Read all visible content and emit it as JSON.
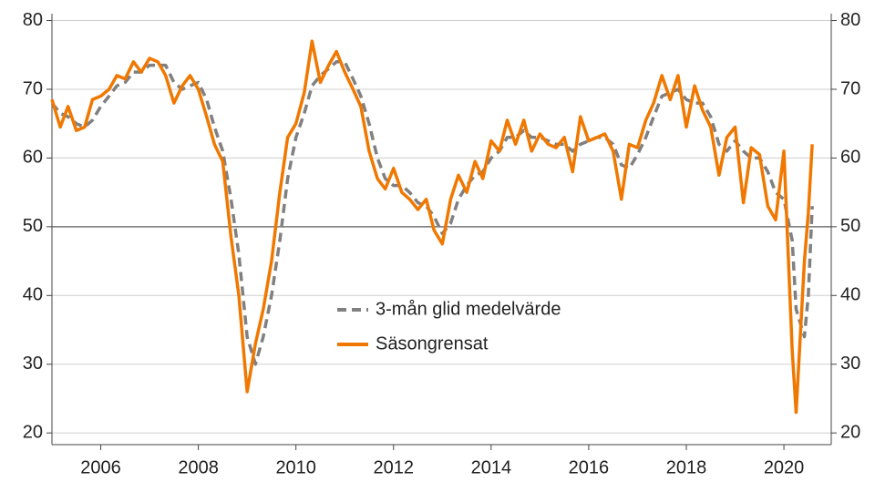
{
  "chart_data": {
    "type": "line",
    "x": [
      2005,
      2005.17,
      2005.33,
      2005.5,
      2005.67,
      2005.83,
      2006,
      2006.17,
      2006.33,
      2006.5,
      2006.67,
      2006.83,
      2007,
      2007.17,
      2007.33,
      2007.5,
      2007.67,
      2007.83,
      2008,
      2008.17,
      2008.33,
      2008.5,
      2008.67,
      2008.83,
      2009,
      2009.17,
      2009.33,
      2009.5,
      2009.67,
      2009.83,
      2010,
      2010.17,
      2010.33,
      2010.5,
      2010.67,
      2010.83,
      2011,
      2011.17,
      2011.33,
      2011.5,
      2011.67,
      2011.83,
      2012,
      2012.17,
      2012.33,
      2012.5,
      2012.67,
      2012.83,
      2013,
      2013.17,
      2013.33,
      2013.5,
      2013.67,
      2013.83,
      2014,
      2014.17,
      2014.33,
      2014.5,
      2014.67,
      2014.83,
      2015,
      2015.17,
      2015.33,
      2015.5,
      2015.67,
      2015.83,
      2016,
      2016.17,
      2016.33,
      2016.5,
      2016.67,
      2016.83,
      2017,
      2017.17,
      2017.33,
      2017.5,
      2017.67,
      2017.83,
      2018,
      2018.17,
      2018.33,
      2018.5,
      2018.67,
      2018.83,
      2019,
      2019.17,
      2019.33,
      2019.5,
      2019.67,
      2019.83,
      2020,
      2020.17,
      2020.25,
      2020.42,
      2020.5,
      2020.58
    ],
    "series": [
      {
        "name": "3-mån glid medelvärde",
        "color": "#808080",
        "dashed": true,
        "values": [
          68,
          66.5,
          66,
          65,
          64.5,
          65.5,
          67.5,
          69,
          70.5,
          71,
          72.5,
          72.5,
          73.5,
          73.5,
          73.5,
          71,
          70,
          70.5,
          71,
          68.5,
          64.5,
          61,
          54,
          46,
          34,
          30,
          34,
          40,
          48,
          57,
          63,
          66.5,
          70.5,
          72,
          73,
          74,
          74,
          71.5,
          69,
          65,
          60,
          57,
          56,
          56,
          55,
          53.5,
          53,
          51.5,
          49,
          50.5,
          54,
          56,
          57.5,
          58,
          60,
          61,
          63,
          63,
          64,
          63,
          63,
          62.5,
          62,
          62,
          61,
          62,
          62.5,
          63,
          63,
          62,
          59,
          58.5,
          60.5,
          63,
          66,
          69,
          69.5,
          70,
          68.5,
          68,
          68,
          66,
          62,
          61,
          62.5,
          61,
          60,
          60,
          58,
          55,
          54,
          48,
          38,
          34,
          40,
          53
        ]
      },
      {
        "name": "Säsongrensat",
        "color": "#f07800",
        "dashed": false,
        "values": [
          68.5,
          64.5,
          67.5,
          64,
          64.5,
          68.5,
          69,
          70,
          72,
          71.5,
          74,
          72.5,
          74.5,
          74,
          72,
          68,
          70.5,
          72,
          70,
          66,
          62,
          59.5,
          48.5,
          40,
          26,
          33,
          38,
          45,
          55,
          63,
          65,
          69.5,
          77,
          71,
          73.5,
          75.5,
          72.5,
          70,
          67.5,
          61,
          57,
          55.5,
          58.5,
          55,
          54,
          52.5,
          54,
          49.5,
          47.5,
          54,
          57.5,
          55,
          59.5,
          57,
          62.5,
          61,
          65.5,
          62,
          65.5,
          61,
          63.5,
          62,
          61.5,
          63,
          58,
          66,
          62.5,
          63,
          63.5,
          61,
          54,
          62,
          61.5,
          65.5,
          68,
          72,
          68.5,
          72,
          64.5,
          70.5,
          67,
          64.5,
          57.5,
          63,
          64.5,
          53.5,
          61.5,
          60.5,
          53,
          51,
          61,
          32,
          23,
          45,
          52,
          62
        ]
      }
    ],
    "xlim": [
      2005,
      2020.97
    ],
    "xticks": [
      2006,
      2008,
      2010,
      2012,
      2014,
      2016,
      2018,
      2020
    ],
    "ylim": [
      18.3,
      81
    ],
    "yticks": [
      20,
      30,
      40,
      50,
      60,
      70,
      80
    ],
    "y2lim": [
      18.3,
      81
    ],
    "y2ticks": [
      20,
      30,
      40,
      50,
      60,
      70,
      80
    ],
    "reference_line": 50,
    "grid": true,
    "legend": "center"
  }
}
